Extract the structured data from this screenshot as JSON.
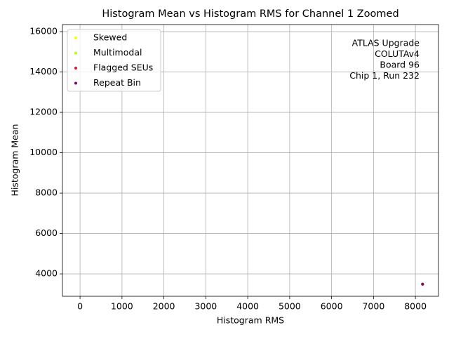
{
  "chart_data": {
    "type": "scatter",
    "title": "Histogram Mean vs Histogram RMS for Channel 1 Zoomed",
    "x_label": "Histogram RMS",
    "y_label": "Histogram Mean",
    "annotation": [
      "ATLAS Upgrade",
      "COLUTAv4",
      "Board 96",
      "Chip 1, Run 232"
    ],
    "series": [
      {
        "name": "Skewed",
        "color": "#ffff00",
        "x": [
          8170
        ],
        "values": [
          3490
        ]
      },
      {
        "name": "Multimodal",
        "color": "#adff2f",
        "x": [
          8170
        ],
        "values": [
          3490
        ]
      },
      {
        "name": "Flagged SEUs",
        "color": "#dc143c",
        "x": [
          8170
        ],
        "values": [
          3490
        ]
      },
      {
        "name": "Repeat Bin",
        "color": "#800080",
        "x": [
          8170
        ],
        "values": [
          3490
        ]
      }
    ],
    "xlim": [
      -420,
      8550
    ],
    "ylim": [
      2890,
      16350
    ],
    "xticks": [
      0,
      1000,
      2000,
      3000,
      4000,
      5000,
      6000,
      7000,
      8000
    ],
    "yticks": [
      4000,
      6000,
      8000,
      10000,
      12000,
      14000,
      16000
    ],
    "grid": true,
    "legend": "upper left"
  }
}
